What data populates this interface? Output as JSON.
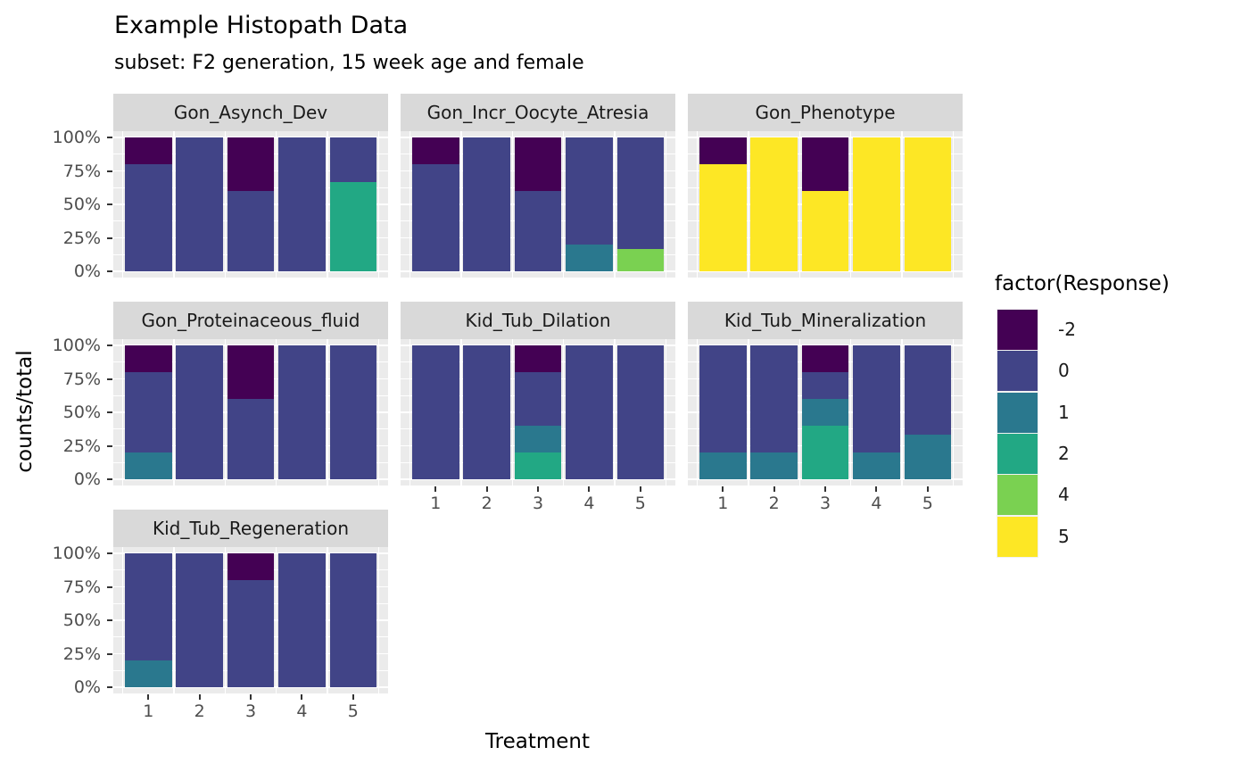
{
  "chart_data": {
    "type": "bar",
    "stacked": true,
    "normalized_percent": true,
    "title": "Example Histopath Data",
    "subtitle": "subset: F2 generation, 15 week age and female",
    "xlabel": "Treatment",
    "ylabel": "counts/total",
    "x_categories": [
      "1",
      "2",
      "3",
      "4",
      "5"
    ],
    "y_tick_labels": [
      "0%",
      "25%",
      "50%",
      "75%",
      "100%"
    ],
    "ylim": [
      0,
      1
    ],
    "grid": true,
    "legend": {
      "title": "factor(Response)",
      "position": "right",
      "entries": [
        {
          "label": "-2",
          "color": "#440154"
        },
        {
          "label": "0",
          "color": "#414487"
        },
        {
          "label": "1",
          "color": "#2a788e"
        },
        {
          "label": "2",
          "color": "#22a884"
        },
        {
          "label": "4",
          "color": "#7ad151"
        },
        {
          "label": "5",
          "color": "#fde725"
        }
      ]
    },
    "theme": {
      "panel_bg": "#ebebeb",
      "strip_bg": "#d9d9d9",
      "grid_color": "#ffffff",
      "axis_text_color": "#4d4d4d",
      "tick_color": "#333333",
      "text_color": "#000000"
    },
    "facets": [
      {
        "name": "Gon_Asynch_Dev",
        "row": 0,
        "col": 0,
        "show_x_axis": false,
        "bars": [
          [
            {
              "response": "0",
              "value": 0.8
            },
            {
              "response": "-2",
              "value": 0.2
            }
          ],
          [
            {
              "response": "0",
              "value": 1
            }
          ],
          [
            {
              "response": "0",
              "value": 0.6
            },
            {
              "response": "-2",
              "value": 0.4
            }
          ],
          [
            {
              "response": "0",
              "value": 1
            }
          ],
          [
            {
              "response": "2",
              "value": 0.667
            },
            {
              "response": "0",
              "value": 0.333
            }
          ]
        ]
      },
      {
        "name": "Gon_Incr_Oocyte_Atresia",
        "row": 0,
        "col": 1,
        "show_x_axis": false,
        "bars": [
          [
            {
              "response": "0",
              "value": 0.8
            },
            {
              "response": "-2",
              "value": 0.2
            }
          ],
          [
            {
              "response": "0",
              "value": 1
            }
          ],
          [
            {
              "response": "0",
              "value": 0.6
            },
            {
              "response": "-2",
              "value": 0.4
            }
          ],
          [
            {
              "response": "1",
              "value": 0.2
            },
            {
              "response": "0",
              "value": 0.8
            }
          ],
          [
            {
              "response": "4",
              "value": 0.167
            },
            {
              "response": "0",
              "value": 0.833
            }
          ]
        ]
      },
      {
        "name": "Gon_Phenotype",
        "row": 0,
        "col": 2,
        "show_x_axis": false,
        "bars": [
          [
            {
              "response": "5",
              "value": 0.8
            },
            {
              "response": "-2",
              "value": 0.2
            }
          ],
          [
            {
              "response": "5",
              "value": 1
            }
          ],
          [
            {
              "response": "5",
              "value": 0.6
            },
            {
              "response": "-2",
              "value": 0.4
            }
          ],
          [
            {
              "response": "5",
              "value": 1
            }
          ],
          [
            {
              "response": "5",
              "value": 1
            }
          ]
        ]
      },
      {
        "name": "Gon_Proteinaceous_fluid",
        "row": 1,
        "col": 0,
        "show_x_axis": false,
        "bars": [
          [
            {
              "response": "1",
              "value": 0.2
            },
            {
              "response": "0",
              "value": 0.6
            },
            {
              "response": "-2",
              "value": 0.2
            }
          ],
          [
            {
              "response": "0",
              "value": 1
            }
          ],
          [
            {
              "response": "0",
              "value": 0.6
            },
            {
              "response": "-2",
              "value": 0.4
            }
          ],
          [
            {
              "response": "0",
              "value": 1
            }
          ],
          [
            {
              "response": "0",
              "value": 1
            }
          ]
        ]
      },
      {
        "name": "Kid_Tub_Dilation",
        "row": 1,
        "col": 1,
        "show_x_axis": true,
        "bars": [
          [
            {
              "response": "0",
              "value": 1
            }
          ],
          [
            {
              "response": "0",
              "value": 1
            }
          ],
          [
            {
              "response": "2",
              "value": 0.2
            },
            {
              "response": "1",
              "value": 0.2
            },
            {
              "response": "0",
              "value": 0.4
            },
            {
              "response": "-2",
              "value": 0.2
            }
          ],
          [
            {
              "response": "0",
              "value": 1
            }
          ],
          [
            {
              "response": "0",
              "value": 1
            }
          ]
        ]
      },
      {
        "name": "Kid_Tub_Mineralization",
        "row": 1,
        "col": 2,
        "show_x_axis": true,
        "bars": [
          [
            {
              "response": "1",
              "value": 0.2
            },
            {
              "response": "0",
              "value": 0.8
            }
          ],
          [
            {
              "response": "1",
              "value": 0.2
            },
            {
              "response": "0",
              "value": 0.8
            }
          ],
          [
            {
              "response": "2",
              "value": 0.4
            },
            {
              "response": "1",
              "value": 0.2
            },
            {
              "response": "0",
              "value": 0.2
            },
            {
              "response": "-2",
              "value": 0.2
            }
          ],
          [
            {
              "response": "1",
              "value": 0.2
            },
            {
              "response": "0",
              "value": 0.8
            }
          ],
          [
            {
              "response": "1",
              "value": 0.333
            },
            {
              "response": "0",
              "value": 0.667
            }
          ]
        ]
      },
      {
        "name": "Kid_Tub_Regeneration",
        "row": 2,
        "col": 0,
        "show_x_axis": true,
        "bars": [
          [
            {
              "response": "1",
              "value": 0.2
            },
            {
              "response": "0",
              "value": 0.8
            }
          ],
          [
            {
              "response": "0",
              "value": 1
            }
          ],
          [
            {
              "response": "0",
              "value": 0.8
            },
            {
              "response": "-2",
              "value": 0.2
            }
          ],
          [
            {
              "response": "0",
              "value": 1
            }
          ],
          [
            {
              "response": "0",
              "value": 1
            }
          ]
        ]
      }
    ]
  }
}
